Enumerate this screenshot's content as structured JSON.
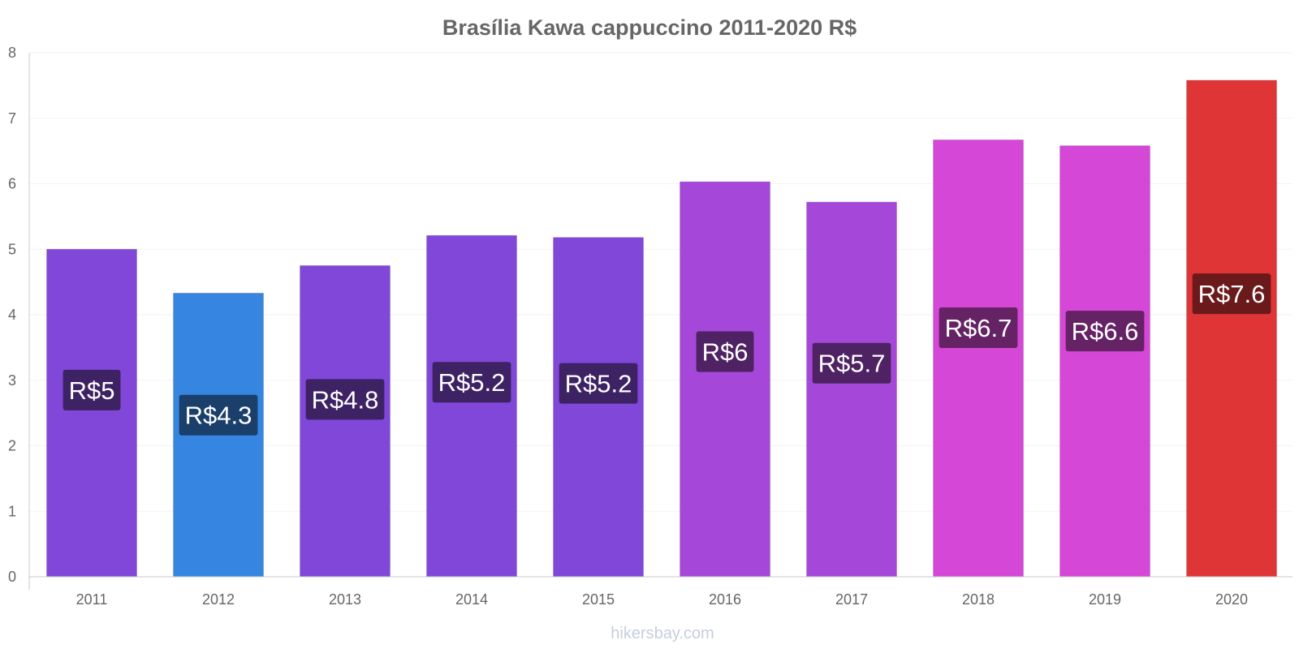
{
  "chart_data": {
    "type": "bar",
    "title": "Brasília Kawa cappuccino 2011-2020 R$",
    "xlabel": "",
    "ylabel": "",
    "categories": [
      "2011",
      "2012",
      "2013",
      "2014",
      "2015",
      "2016",
      "2017",
      "2018",
      "2019",
      "2020"
    ],
    "values": [
      5.0,
      4.33,
      4.75,
      5.21,
      5.18,
      6.03,
      5.72,
      6.67,
      6.58,
      7.58
    ],
    "data_labels": [
      "R$5",
      "R$4.3",
      "R$4.8",
      "R$5.2",
      "R$5.2",
      "R$6",
      "R$5.7",
      "R$6.7",
      "R$6.6",
      "R$7.6"
    ],
    "bar_colors": [
      "#8147d9",
      "#3685e0",
      "#8147d9",
      "#8147d9",
      "#8147d9",
      "#a548da",
      "#a548da",
      "#d547d6",
      "#d547d6",
      "#e03536"
    ],
    "label_bg_colors": [
      "#3d2264",
      "#1b3f6b",
      "#3d2264",
      "#3d2264",
      "#3d2264",
      "#4e2263",
      "#4e2263",
      "#652265",
      "#652265",
      "#6b1a1b"
    ],
    "yticks": [
      "0",
      "1",
      "2",
      "3",
      "4",
      "5",
      "6",
      "7",
      "8"
    ],
    "ylim": [
      0,
      8
    ],
    "grid": true,
    "legend": "none"
  },
  "watermark": "hikersbay.com"
}
